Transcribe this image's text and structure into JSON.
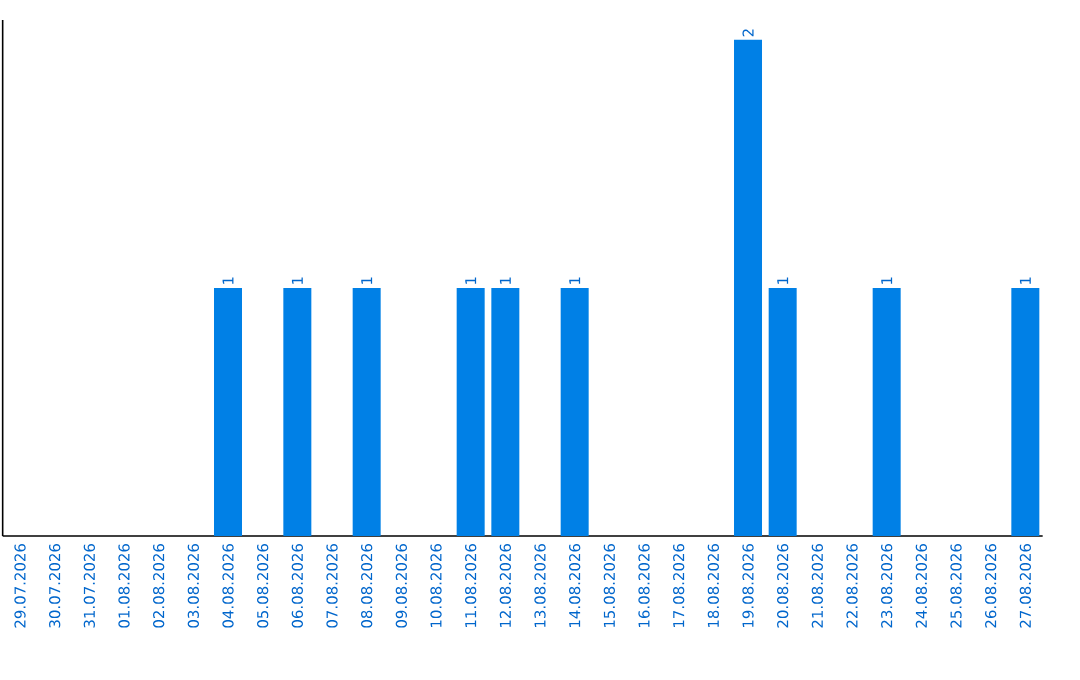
{
  "chart_data": {
    "type": "bar",
    "categories": [
      "29.07.2026",
      "30.07.2026",
      "31.07.2026",
      "01.08.2026",
      "02.08.2026",
      "03.08.2026",
      "04.08.2026",
      "05.08.2026",
      "06.08.2026",
      "07.08.2026",
      "08.08.2026",
      "09.08.2026",
      "10.08.2026",
      "11.08.2026",
      "12.08.2026",
      "13.08.2026",
      "14.08.2026",
      "15.08.2026",
      "16.08.2026",
      "17.08.2026",
      "18.08.2026",
      "19.08.2026",
      "20.08.2026",
      "21.08.2026",
      "22.08.2026",
      "23.08.2026",
      "24.08.2026",
      "25.08.2026",
      "26.08.2026",
      "27.08.2026"
    ],
    "values": [
      0,
      0,
      0,
      0,
      0,
      0,
      1,
      0,
      1,
      0,
      1,
      0,
      0,
      1,
      1,
      0,
      1,
      0,
      0,
      0,
      0,
      2,
      1,
      0,
      0,
      1,
      0,
      0,
      0,
      1
    ],
    "value_labels": [
      null,
      null,
      null,
      null,
      null,
      null,
      "1",
      null,
      "1",
      null,
      "1",
      null,
      null,
      "1",
      "1",
      null,
      "1",
      null,
      null,
      null,
      null,
      "2",
      "1",
      null,
      null,
      "1",
      null,
      null,
      null,
      "1"
    ],
    "color": "#0080e6"
  }
}
